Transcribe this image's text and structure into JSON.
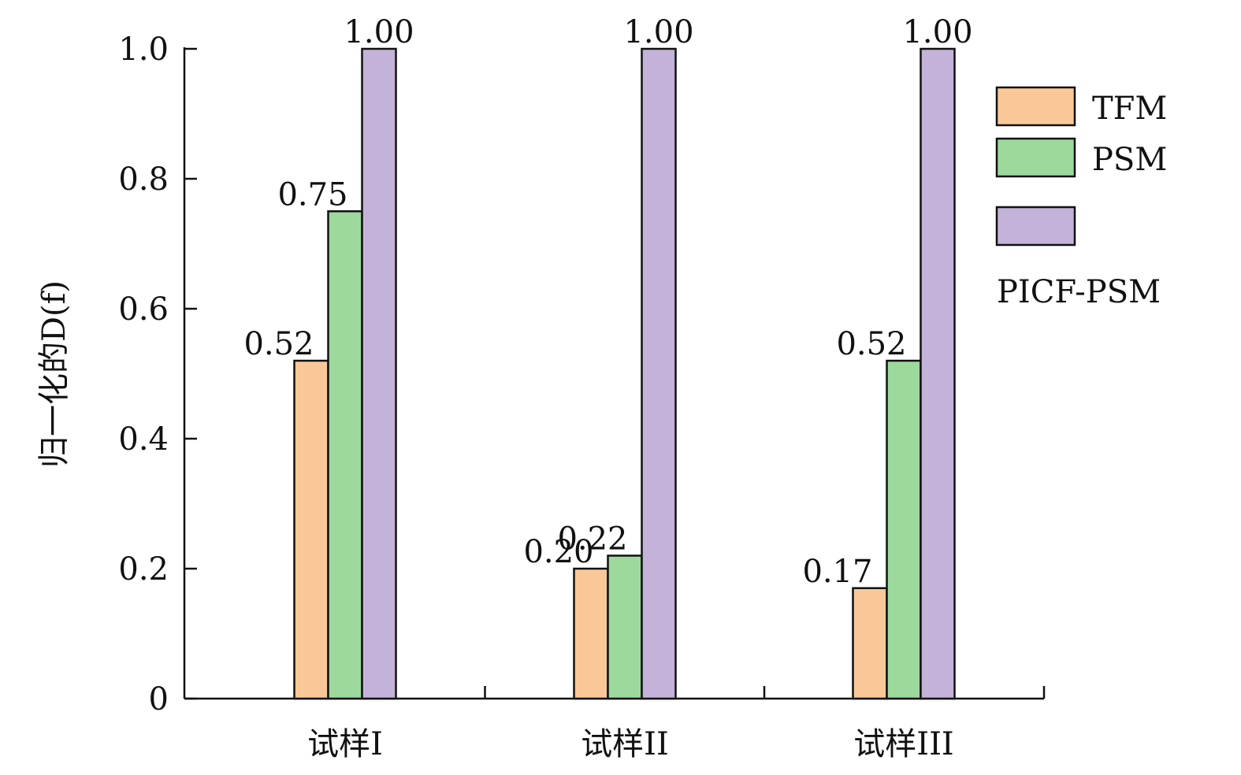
{
  "chart_data": {
    "type": "bar",
    "categories": [
      "试样I",
      "试样II",
      "试样III"
    ],
    "series": [
      {
        "name": "TFM",
        "values": [
          0.52,
          0.2,
          0.17
        ],
        "labels": [
          "0.52",
          "0.20",
          "0.17"
        ]
      },
      {
        "name": "PSM",
        "values": [
          0.75,
          0.22,
          0.52
        ],
        "labels": [
          "0.75",
          "0.22",
          "0.52"
        ]
      },
      {
        "name": "PICF-PSM",
        "values": [
          1.0,
          1.0,
          1.0
        ],
        "labels": [
          "1.00",
          "1.00",
          "1.00"
        ]
      }
    ],
    "colors": [
      "#fac898",
      "#9dd99d",
      "#c3b3d8"
    ],
    "ylabel": "归一化的D(f)",
    "ylim": [
      0,
      1.0
    ],
    "yticks": [
      "0",
      "0.2",
      "0.4",
      "0.6",
      "0.8",
      "1.0"
    ],
    "ytick_values": [
      0,
      0.2,
      0.4,
      0.6,
      0.8,
      1.0
    ],
    "legend_position": "right",
    "grid": false
  }
}
